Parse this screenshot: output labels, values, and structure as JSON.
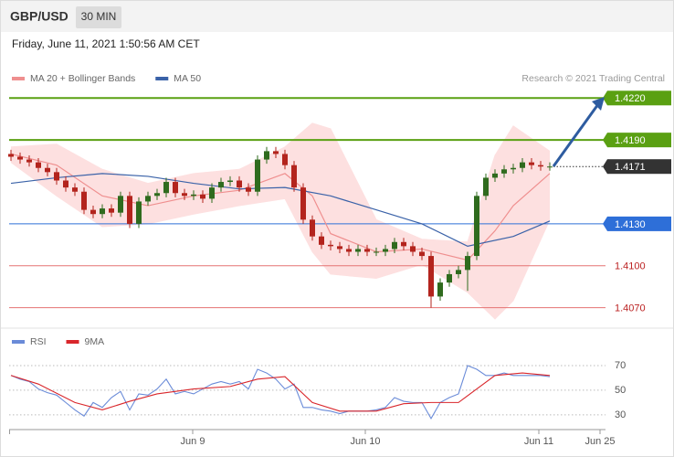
{
  "header": {
    "symbol": "GBP/USD",
    "timeframe": "30 MIN",
    "datetime": "Friday, June 11, 2021 1:50:56 AM CET",
    "copyright": "Research © 2021 Trading Central"
  },
  "chart_data": [
    {
      "type": "candlestick",
      "x": [
        0,
        1,
        2,
        3,
        4,
        5,
        6,
        7,
        8,
        9,
        10,
        11,
        12,
        13,
        14,
        15,
        16,
        17,
        18,
        19,
        20,
        21,
        22,
        23,
        24,
        25,
        26,
        27,
        28,
        29,
        30,
        31,
        32,
        33,
        34,
        35,
        36,
        37,
        38,
        39,
        40,
        41,
        42,
        43,
        44,
        45,
        46,
        47,
        48,
        49,
        50,
        51,
        52,
        53,
        54,
        55,
        56,
        57,
        58,
        59
      ],
      "open": [
        1.418,
        1.4178,
        1.4176,
        1.4174,
        1.417,
        1.4167,
        1.4161,
        1.4156,
        1.4153,
        1.414,
        1.4137,
        1.4141,
        1.4138,
        1.415,
        1.413,
        1.4146,
        1.415,
        1.4152,
        1.416,
        1.4152,
        1.415,
        1.4151,
        1.4148,
        1.4156,
        1.416,
        1.4161,
        1.4156,
        1.4153,
        1.4176,
        1.4182,
        1.418,
        1.4172,
        1.4156,
        1.4133,
        1.4121,
        1.4115,
        1.4114,
        1.4112,
        1.411,
        1.4112,
        1.411,
        1.411,
        1.4112,
        1.4117,
        1.4114,
        1.411,
        1.4107,
        1.4078,
        1.4088,
        1.4094,
        1.4097,
        1.4107,
        1.415,
        1.4163,
        1.4166,
        1.4169,
        1.417,
        1.4174,
        1.4172,
        1.4171
      ],
      "high": [
        1.4183,
        1.4181,
        1.4179,
        1.4177,
        1.4173,
        1.417,
        1.4164,
        1.4159,
        1.4156,
        1.4143,
        1.4144,
        1.4144,
        1.4153,
        1.4153,
        1.4149,
        1.4153,
        1.4155,
        1.4163,
        1.4163,
        1.4155,
        1.4154,
        1.4154,
        1.4159,
        1.4163,
        1.4164,
        1.4164,
        1.4159,
        1.4179,
        1.4185,
        1.4185,
        1.4183,
        1.4175,
        1.4159,
        1.4136,
        1.4124,
        1.4118,
        1.4117,
        1.4115,
        1.4115,
        1.4115,
        1.4113,
        1.4115,
        1.412,
        1.412,
        1.4117,
        1.4113,
        1.411,
        1.4091,
        1.4097,
        1.41,
        1.411,
        1.4153,
        1.4166,
        1.4169,
        1.4172,
        1.4173,
        1.4177,
        1.4177,
        1.4175,
        1.4174
      ],
      "low": [
        1.4175,
        1.4173,
        1.4171,
        1.4167,
        1.4164,
        1.4158,
        1.4153,
        1.415,
        1.4137,
        1.4134,
        1.4134,
        1.4135,
        1.4135,
        1.4127,
        1.4127,
        1.4143,
        1.4147,
        1.4149,
        1.4149,
        1.4147,
        1.4147,
        1.4145,
        1.4145,
        1.4153,
        1.4157,
        1.4153,
        1.415,
        1.415,
        1.4173,
        1.4177,
        1.4169,
        1.4153,
        1.413,
        1.4118,
        1.4112,
        1.4111,
        1.4109,
        1.4107,
        1.4107,
        1.4107,
        1.4107,
        1.4107,
        1.4109,
        1.4111,
        1.4107,
        1.4104,
        1.407,
        1.4075,
        1.4085,
        1.4091,
        1.4082,
        1.4104,
        1.4147,
        1.416,
        1.4163,
        1.4166,
        1.4167,
        1.4169,
        1.4168,
        1.4168
      ],
      "close": [
        1.4178,
        1.4176,
        1.4174,
        1.417,
        1.4167,
        1.4161,
        1.4156,
        1.4153,
        1.414,
        1.4137,
        1.4141,
        1.4138,
        1.415,
        1.413,
        1.4146,
        1.415,
        1.4152,
        1.416,
        1.4152,
        1.415,
        1.4151,
        1.4148,
        1.4156,
        1.416,
        1.4161,
        1.4156,
        1.4153,
        1.4176,
        1.4182,
        1.418,
        1.4172,
        1.4156,
        1.4133,
        1.4121,
        1.4115,
        1.4114,
        1.4112,
        1.411,
        1.4112,
        1.411,
        1.411,
        1.4112,
        1.4117,
        1.4114,
        1.411,
        1.4107,
        1.4078,
        1.4088,
        1.4094,
        1.4097,
        1.4107,
        1.415,
        1.4163,
        1.4166,
        1.4169,
        1.417,
        1.4174,
        1.4172,
        1.4171,
        1.4171
      ],
      "up_color": "#2f6b1e",
      "down_color": "#b3241d",
      "lines": [
        {
          "name": "MA 20 + Bollinger Bands",
          "color": "#ef8f8f",
          "band_color": "#fde0e0",
          "x": [
            0,
            5,
            10,
            15,
            20,
            25,
            30,
            33,
            35,
            40,
            45,
            50,
            53,
            55,
            59
          ],
          "values": [
            1.418,
            1.4172,
            1.415,
            1.4143,
            1.415,
            1.4154,
            1.4166,
            1.415,
            1.4123,
            1.411,
            1.4112,
            1.4104,
            1.4125,
            1.4143,
            1.4166
          ],
          "upper": [
            1.4185,
            1.4187,
            1.4169,
            1.4159,
            1.4166,
            1.4169,
            1.4185,
            1.4202,
            1.4198,
            1.4133,
            1.4119,
            1.4117,
            1.4179,
            1.42,
            1.4182
          ],
          "lower": [
            1.4174,
            1.415,
            1.4128,
            1.413,
            1.4137,
            1.4143,
            1.4148,
            1.411,
            1.4094,
            1.4091,
            1.4101,
            1.4081,
            1.4062,
            1.4075,
            1.4133
          ]
        },
        {
          "name": "MA 50",
          "color": "#3a62a8",
          "x": [
            0,
            5,
            10,
            15,
            20,
            25,
            30,
            35,
            40,
            45,
            50,
            55,
            59
          ],
          "values": [
            1.4159,
            1.4163,
            1.4166,
            1.4164,
            1.4159,
            1.4155,
            1.4156,
            1.415,
            1.414,
            1.413,
            1.4114,
            1.4121,
            1.4132
          ]
        }
      ],
      "levels": [
        {
          "value": 1.422,
          "label": "1.4220",
          "kind": "resistance",
          "color": "#5aa012"
        },
        {
          "value": 1.419,
          "label": "1.4190",
          "kind": "resistance",
          "color": "#5aa012"
        },
        {
          "value": 1.4171,
          "label": "1.4171",
          "kind": "last",
          "color": "#333333"
        },
        {
          "value": 1.413,
          "label": "1.4130",
          "kind": "support",
          "color": "#2e6fd8"
        },
        {
          "value": 1.41,
          "label": "1.4100",
          "kind": "plain",
          "color": "#e57373"
        },
        {
          "value": 1.407,
          "label": "1.4070",
          "kind": "plain",
          "color": "#e57373"
        }
      ],
      "ylim": [
        1.4058,
        1.4264
      ],
      "xlim": [
        -0.2,
        65.1
      ]
    },
    {
      "type": "line",
      "series": [
        {
          "name": "RSI",
          "color": "#6a8bd8",
          "x": [
            0,
            1,
            2,
            3,
            4,
            5,
            6,
            7,
            8,
            9,
            10,
            11,
            12,
            13,
            14,
            15,
            16,
            17,
            18,
            19,
            20,
            21,
            22,
            23,
            24,
            25,
            26,
            27,
            28,
            29,
            30,
            31,
            32,
            33,
            34,
            35,
            36,
            37,
            38,
            39,
            40,
            41,
            42,
            43,
            44,
            45,
            46,
            47,
            48,
            49,
            50,
            51,
            52,
            53,
            54,
            55,
            56,
            57,
            58,
            59
          ],
          "values": [
            62,
            59,
            57,
            51,
            48,
            46,
            40,
            34,
            29,
            40,
            36,
            44,
            49,
            34,
            47,
            46,
            51,
            59,
            47,
            49,
            47,
            51,
            55,
            57,
            55,
            57,
            51,
            67,
            64,
            59,
            51,
            55,
            36,
            36,
            34,
            33,
            31,
            33,
            33,
            33,
            34,
            36,
            44,
            41,
            40,
            40,
            27,
            40,
            44,
            47,
            70,
            67,
            62,
            62,
            64,
            62,
            62,
            62,
            62,
            61
          ]
        },
        {
          "name": "9MA",
          "color": "#d9262b",
          "x": [
            0,
            3,
            7,
            10,
            13,
            16,
            20,
            24,
            27,
            30,
            33,
            36,
            40,
            43,
            46,
            49,
            51,
            53,
            56,
            59
          ],
          "values": [
            62,
            55,
            40,
            34,
            41,
            47,
            51,
            53,
            59,
            61,
            40,
            33,
            33,
            39,
            40,
            40,
            51,
            62,
            64,
            62
          ]
        }
      ],
      "ylim": [
        18,
        96
      ],
      "yticks": [
        30,
        50,
        70
      ],
      "grid": true,
      "xlim": [
        -0.2,
        65.1
      ],
      "xticks": [
        {
          "value": 19.9,
          "label": "Jun 9"
        },
        {
          "value": 38.8,
          "label": "Jun 10"
        },
        {
          "value": 57.8,
          "label": "Jun 11"
        },
        {
          "value": 64.5,
          "label": "Jun 25"
        }
      ]
    }
  ]
}
